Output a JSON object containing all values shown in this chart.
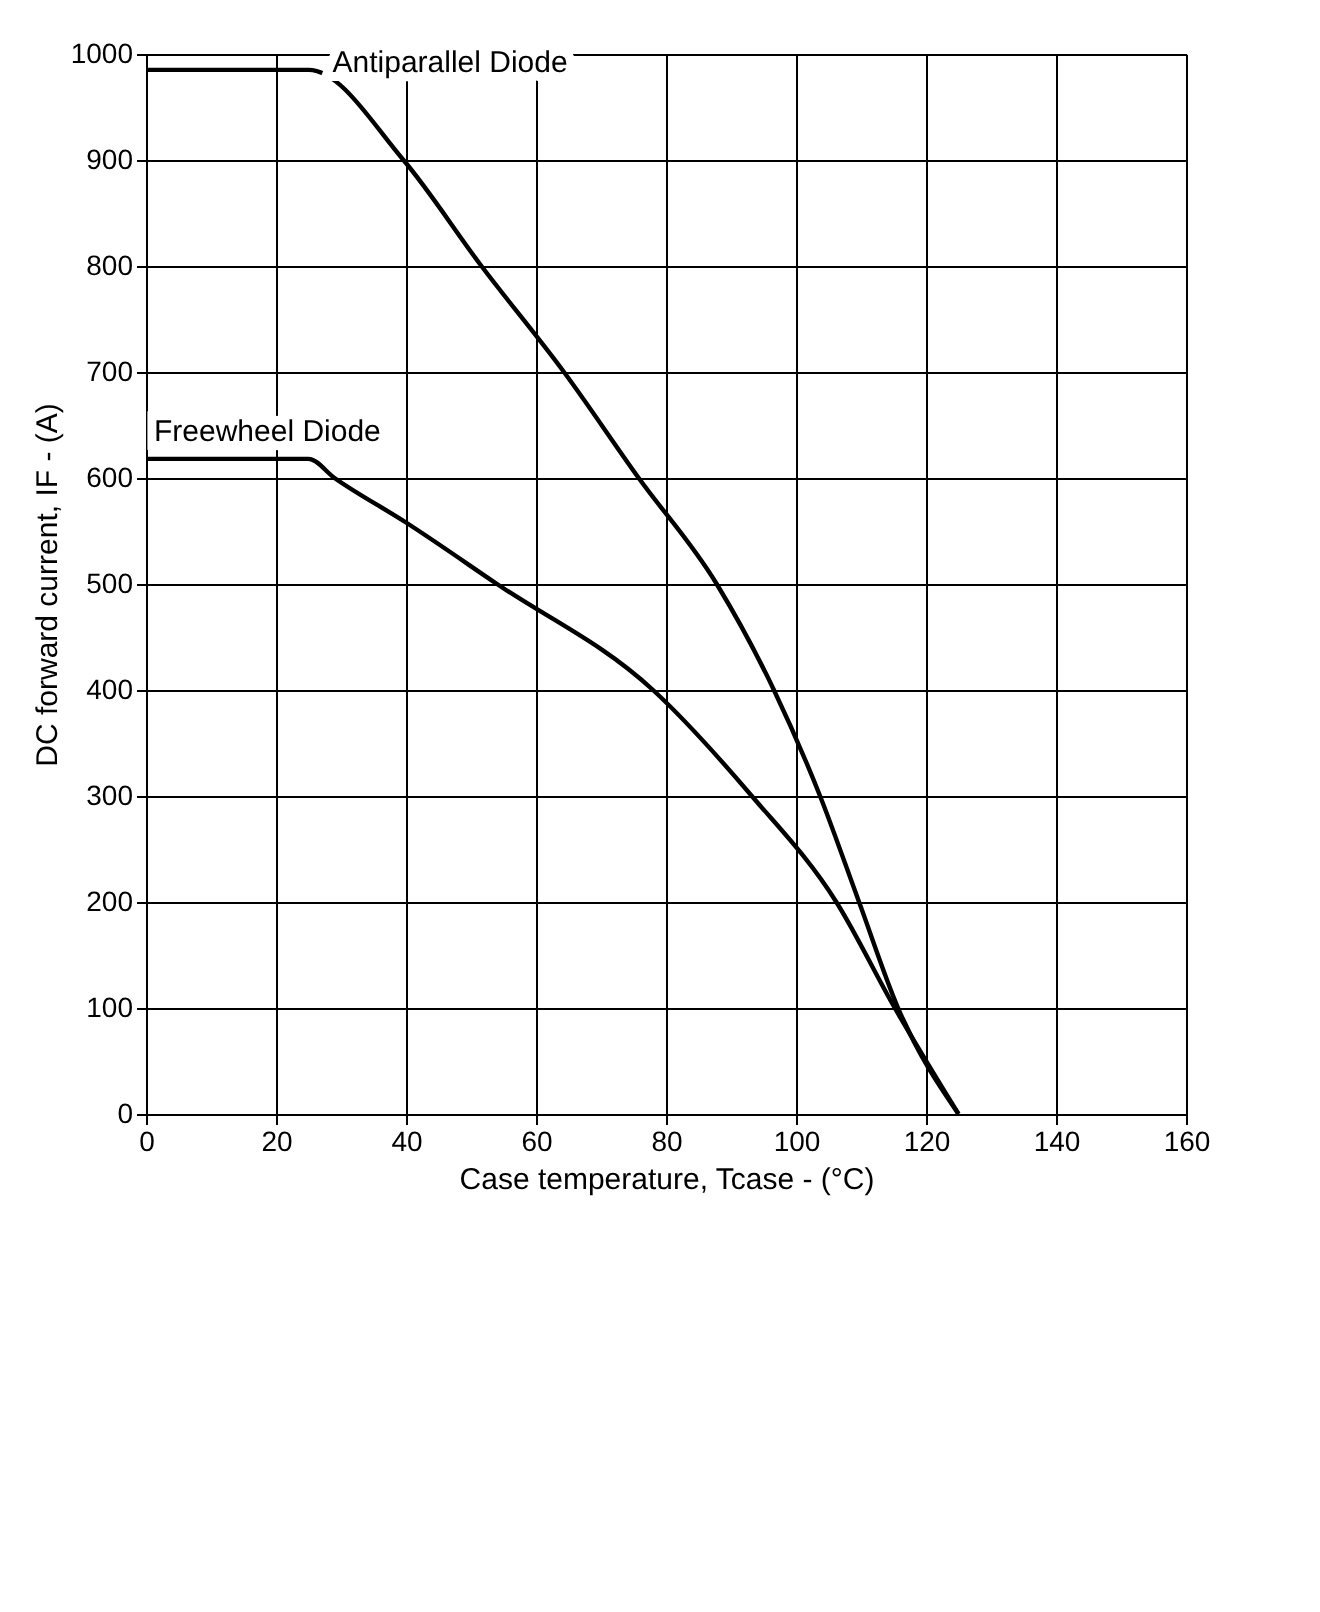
{
  "chart_data": {
    "type": "line",
    "xlabel": "Case temperature, Tcase - (°C)",
    "ylabel": "DC forward current, IF - (A)",
    "xlim": [
      0,
      160
    ],
    "xticks": [
      0,
      20,
      40,
      60,
      80,
      100,
      120,
      140,
      160
    ],
    "ylim": [
      0,
      1000
    ],
    "yticks": [
      0,
      100,
      200,
      300,
      400,
      500,
      600,
      700,
      800,
      900,
      1000
    ],
    "grid": true,
    "marker": "none",
    "line_style": "solid",
    "series": [
      {
        "name": "Antiparallel Diode",
        "color": "#000000",
        "x": [
          0,
          25,
          39.6,
          51.6,
          64.3,
          75.8,
          87.8,
          96.6,
          103.7,
          109.7,
          115.7,
          125
        ],
        "values": [
          985,
          985,
          900,
          800,
          700,
          600,
          500,
          400,
          300,
          200,
          100,
          0
        ]
      },
      {
        "name": "Freewheel Diode",
        "color": "#000000",
        "x": [
          0,
          25,
          29,
          40,
          54,
          78,
          93.2,
          106.2,
          115.2,
          125
        ],
        "values": [
          618,
          618,
          600,
          558,
          500,
          400,
          300,
          200,
          100,
          0
        ]
      }
    ]
  }
}
